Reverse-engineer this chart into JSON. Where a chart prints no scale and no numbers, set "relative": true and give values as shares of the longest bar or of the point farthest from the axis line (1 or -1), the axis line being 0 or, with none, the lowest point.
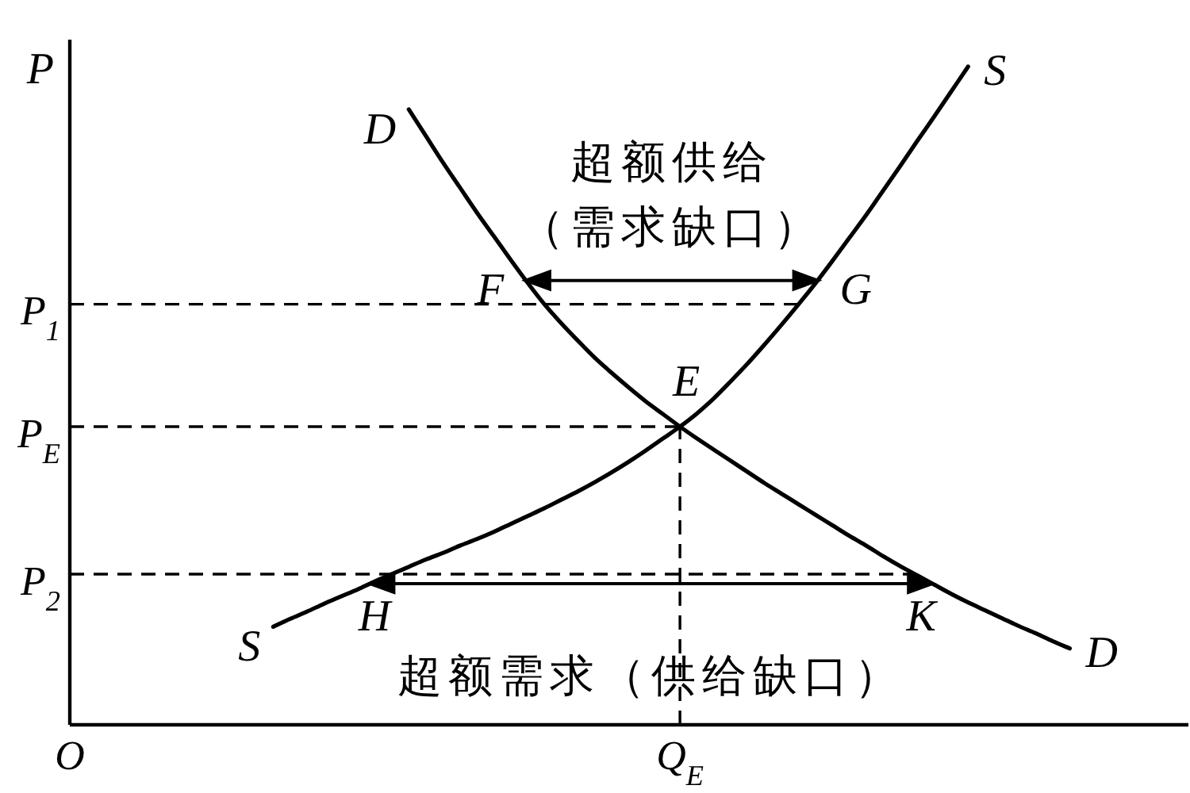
{
  "chart_data": {
    "type": "line",
    "relative": true,
    "ylabel": "P",
    "categories": [
      "O",
      null,
      null,
      null,
      null,
      null,
      null,
      null,
      null,
      null,
      null,
      null,
      null,
      null,
      null,
      null,
      null,
      null,
      null,
      null,
      null,
      null,
      null,
      null,
      null,
      null,
      null,
      null,
      null,
      null,
      null,
      null,
      null,
      null,
      null,
      null,
      "Q$_{E}$",
      null,
      null,
      null,
      null,
      null,
      null,
      null,
      null,
      null,
      null,
      null,
      null,
      null,
      null,
      null,
      null,
      null,
      null,
      null,
      null,
      null,
      null,
      null,
      null,
      null,
      null,
      null,
      null,
      null,
      null
    ],
    "series": [
      {
        "name": "D",
        "color": "#000000",
        "values": [
          null,
          null,
          null,
          null,
          null,
          null,
          null,
          null,
          null,
          null,
          null,
          null,
          null,
          null,
          null,
          null,
          null,
          null,
          null,
          null,
          0.935,
          0.895,
          0.855,
          0.817,
          0.779,
          0.743,
          0.707,
          0.672,
          0.639,
          0.61,
          0.583,
          0.557,
          0.534,
          0.512,
          0.491,
          0.472,
          0.453,
          0.435,
          0.418,
          0.401,
          0.384,
          0.367,
          0.351,
          0.335,
          0.319,
          0.303,
          0.287,
          0.272,
          0.256,
          0.241,
          0.227,
          0.213,
          0.199,
          0.186,
          0.174,
          0.162,
          0.15,
          0.139,
          0.127,
          0.116,
          null,
          null,
          null,
          null,
          null,
          null,
          null
        ]
      },
      {
        "name": "S",
        "color": "#000000",
        "values": [
          null,
          null,
          null,
          null,
          null,
          null,
          null,
          null,
          null,
          null,
          null,
          null,
          0.149,
          0.161,
          0.172,
          0.184,
          0.195,
          0.206,
          0.218,
          0.229,
          0.24,
          0.251,
          0.261,
          0.272,
          0.282,
          0.293,
          0.305,
          0.317,
          0.329,
          0.342,
          0.355,
          0.369,
          0.384,
          0.4,
          0.417,
          0.435,
          0.453,
          0.473,
          0.496,
          0.522,
          0.549,
          0.578,
          0.608,
          0.639,
          0.671,
          0.705,
          0.74,
          0.775,
          0.812,
          0.849,
          0.887,
          0.924,
          0.962,
          1.0,
          null,
          null,
          null,
          null,
          null,
          null,
          null,
          null,
          null,
          null,
          null,
          null,
          null
        ]
      }
    ],
    "ref_lines": [
      {
        "axis": "y",
        "value": 0.639,
        "label": "P$_{1}$",
        "color": "#000000",
        "line_style": "dashed"
      },
      {
        "axis": "y",
        "value": 0.453,
        "label": "P$_{E}$",
        "color": "#000000",
        "line_style": "dashed"
      },
      {
        "axis": "y",
        "value": 0.229,
        "label": "P$_{2}$",
        "color": "#000000",
        "line_style": "dashed"
      },
      {
        "axis": "x",
        "value": "Q$_{E}$",
        "color": "#000000",
        "line_style": "dashed"
      }
    ],
    "annotations": [
      "超额供给（需求缺口）",
      "超额需求（供给缺口）",
      "G",
      {
        "text": "F",
        "y": 0.639
      },
      {
        "text": "E",
        "y": 0.453
      },
      {
        "text": "H",
        "y": 0.229
      },
      {
        "text": "K",
        "y": 0.229
      }
    ]
  }
}
